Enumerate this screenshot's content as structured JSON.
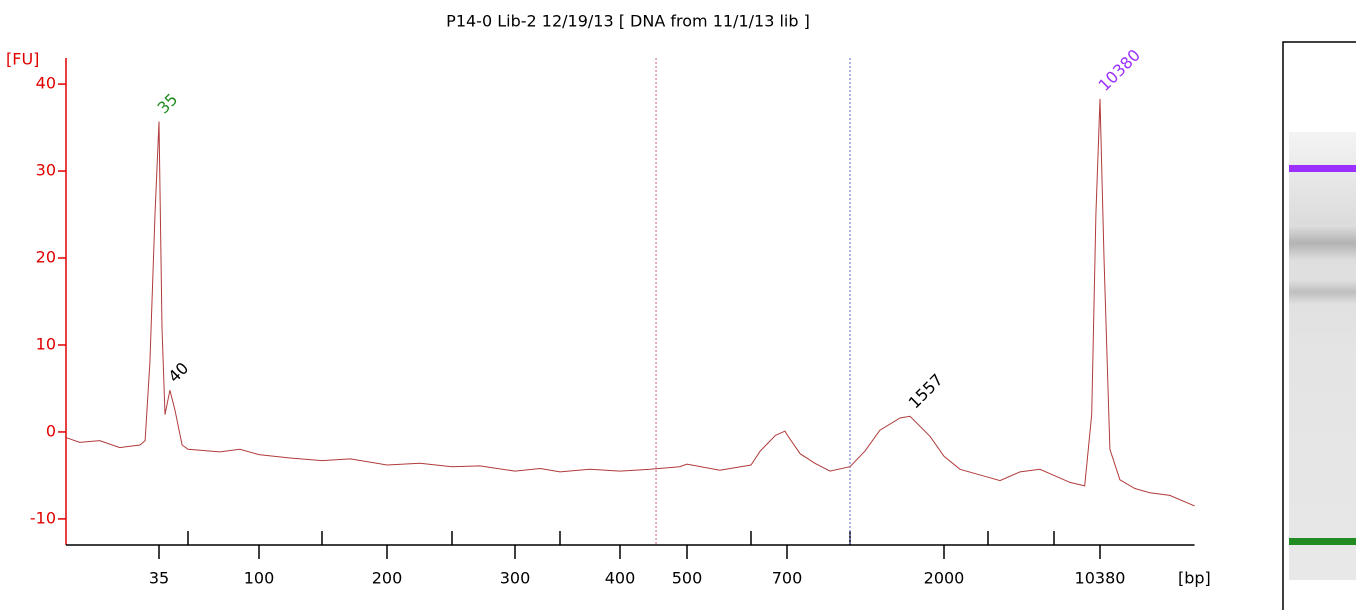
{
  "chart_data": {
    "type": "line",
    "title": "P14-0 Lib-2 12/19/13  [ DNA from 11/1/13 lib ]",
    "y_label": "[FU]",
    "x_label": "[bp]",
    "color": "#b03a3a",
    "y_axis_color": "#e00000",
    "x": [
      11,
      13.2,
      16.9,
      21.6,
      27.7,
      29.5,
      31.3,
      33.3,
      35,
      36.3,
      37.7,
      40,
      42.6,
      46.5,
      50,
      68.3,
      83,
      100,
      122,
      150,
      170,
      200,
      224,
      250,
      271,
      300,
      327,
      350,
      374,
      400,
      442,
      488,
      500,
      549,
      600,
      624,
      666,
      694,
      700,
      754,
      820,
      893,
      1000,
      1117,
      1247,
      1446,
      1557,
      1804,
      2000,
      2317,
      3000,
      3500,
      4525,
      5843,
      7000,
      8030,
      9107,
      9670,
      10020,
      10380,
      10740,
      11300,
      12310,
      14000,
      15910,
      18880,
      23330
    ],
    "values": [
      -0.6,
      -1.2,
      -1.0,
      -1.8,
      -1.5,
      -1.0,
      8,
      25,
      35.7,
      12,
      2,
      4.8,
      2.5,
      -1.5,
      -2.0,
      -2.3,
      -2.0,
      -2.6,
      -3.0,
      -3.3,
      -3.1,
      -3.8,
      -3.6,
      -4.0,
      -3.9,
      -4.5,
      -4.2,
      -4.6,
      -4.3,
      -4.5,
      -4.3,
      -4.0,
      -3.7,
      -4.4,
      -3.8,
      -2.2,
      -0.4,
      0.1,
      -0.3,
      -2.5,
      -3.6,
      -4.5,
      -4.0,
      -2.2,
      0.2,
      1.6,
      1.8,
      -0.5,
      -2.8,
      -4.3,
      -5.2,
      -5.6,
      -4.6,
      -4.3,
      -5.0,
      -5.8,
      -6.2,
      2,
      25,
      38.3,
      20,
      -2,
      -5.5,
      -6.5,
      -7.0,
      -7.3,
      -8.5
    ],
    "xlim": [
      11,
      23330
    ],
    "xticks": [
      35,
      100,
      200,
      300,
      400,
      500,
      700,
      2000,
      10380
    ],
    "minor_xticks": [
      50,
      150,
      250,
      350,
      600,
      1000,
      3000,
      7000
    ],
    "x_scale": "log-ladder",
    "ylim": [
      -13,
      43
    ],
    "yticks": [
      -10,
      0,
      10,
      20,
      30,
      40
    ],
    "peaks": [
      {
        "value": 35,
        "fu": 35.7,
        "color": "#228b22"
      },
      {
        "value": 40,
        "fu": 4.8,
        "color": "#000000"
      },
      {
        "value": 1557,
        "fu": 1.8,
        "color": "#000000"
      },
      {
        "value": 10380,
        "fu": 38.3,
        "color": "#9b30ff"
      }
    ],
    "region_markers": [
      {
        "value": 451,
        "color": "#d06080"
      },
      {
        "value": 1000,
        "color": "#6060d0"
      }
    ]
  }
}
